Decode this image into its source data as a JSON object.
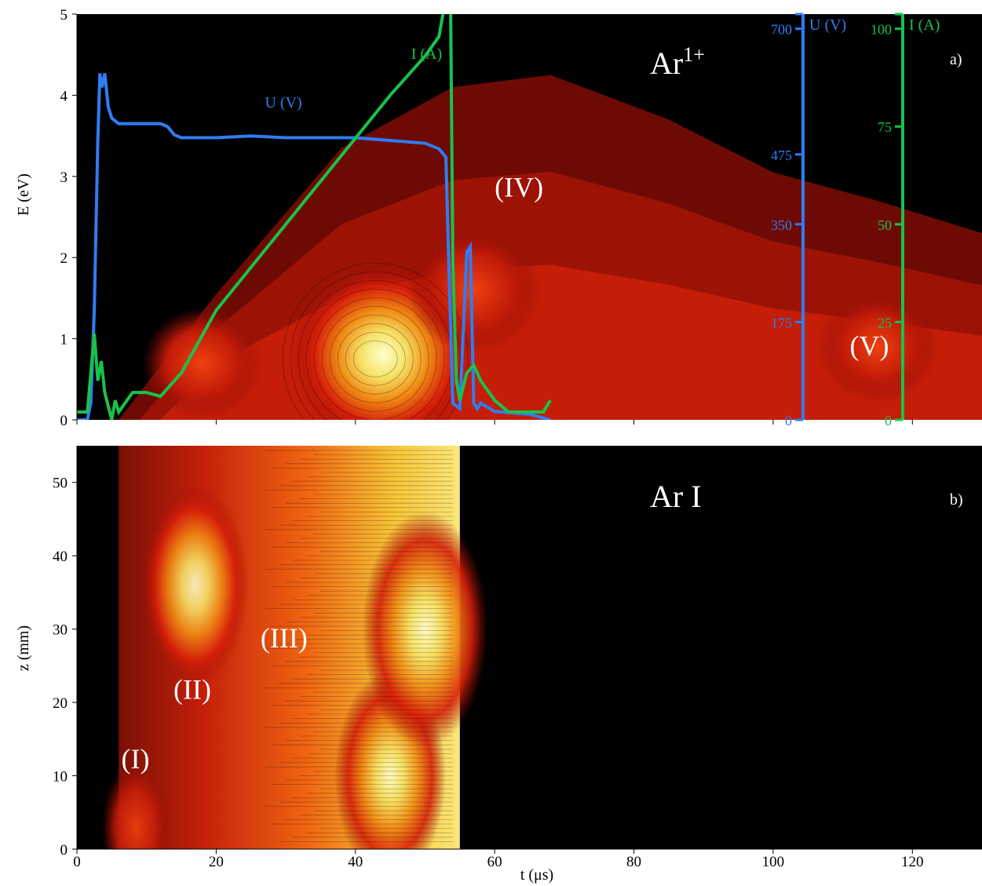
{
  "colors": {
    "voltage": "#2f7df2",
    "current": "#19c24a",
    "background": "#000000"
  },
  "chart_data": [
    {
      "type": "heatmap",
      "panel_label": "a)",
      "species_label": "Ar1+",
      "species_base": "Ar",
      "species_sup": "1+",
      "ylabel": "E (eV)",
      "xlim": [
        0,
        130
      ],
      "ylim": [
        0,
        5
      ],
      "y_ticks": [
        "0",
        "1",
        "2",
        "3",
        "4",
        "5"
      ],
      "region_labels": [
        {
          "text": "(IV)",
          "t": 60,
          "E": 2.75
        },
        {
          "text": "(V)",
          "t": 111,
          "E": 0.8
        }
      ],
      "right_axes": [
        {
          "name": "U (V)",
          "ticks": [
            "0",
            "175",
            "350",
            "475",
            "700"
          ],
          "values": [
            0,
            175,
            350,
            475,
            700
          ],
          "range": [
            0,
            700
          ]
        },
        {
          "name": "I (A)",
          "ticks": [
            "0",
            "25",
            "50",
            "75",
            "100"
          ],
          "values": [
            0,
            25,
            50,
            75,
            100
          ],
          "range": [
            0,
            100
          ]
        }
      ],
      "series": [
        {
          "name": "U (V)",
          "label_t": 27,
          "label_E": 3.85,
          "x": [
            0,
            1.5,
            2,
            2.5,
            3,
            3.3,
            3.6,
            4,
            4.5,
            5,
            6,
            8,
            12,
            13,
            14,
            15,
            17,
            20,
            25,
            30,
            35,
            40,
            45,
            50,
            52,
            53,
            53.5,
            54,
            55,
            56,
            56.5,
            57,
            57.5,
            58,
            60,
            65,
            68
          ],
          "values": [
            0,
            0,
            30,
            200,
            500,
            620,
            595,
            620,
            560,
            540,
            530,
            530,
            530,
            525,
            510,
            505,
            505,
            505,
            508,
            505,
            505,
            505,
            500,
            495,
            485,
            470,
            240,
            30,
            20,
            300,
            310,
            30,
            20,
            30,
            15,
            10,
            0
          ]
        },
        {
          "name": "I (A)",
          "label_t": 48,
          "label_E": 4.45,
          "x": [
            0,
            1.5,
            2.5,
            3,
            3.5,
            4,
            5,
            5.5,
            6,
            8,
            10,
            12,
            15,
            20,
            25,
            30,
            35,
            40,
            45,
            50,
            52,
            53,
            53.5,
            54,
            54.5,
            55,
            56,
            57,
            58,
            60,
            62,
            65,
            67,
            68
          ],
          "values": [
            2,
            2,
            22,
            10,
            15,
            7,
            0,
            5,
            2,
            7,
            7,
            6,
            12,
            28,
            39,
            50,
            61,
            72,
            83,
            93,
            98,
            108,
            140,
            40,
            10,
            5,
            12,
            14,
            10,
            5,
            2,
            2,
            2,
            5
          ]
        }
      ],
      "ridges": [
        {
          "t": 20,
          "E": 1.55
        },
        {
          "t": 38,
          "E": 3.35
        },
        {
          "t": 54,
          "E": 4.1
        },
        {
          "t": 68,
          "E": 4.25
        },
        {
          "t": 85,
          "E": 3.7
        },
        {
          "t": 100,
          "E": 3.05
        },
        {
          "t": 115,
          "E": 2.7
        },
        {
          "t": 130,
          "E": 2.3
        }
      ],
      "hot_spots": [
        {
          "t": 18,
          "E": 0.7,
          "level": 0.45
        },
        {
          "t": 44,
          "E": 0.8,
          "level": 0.95
        },
        {
          "t": 57,
          "E": 1.6,
          "level": 0.55
        },
        {
          "t": 115,
          "E": 0.9,
          "level": 0.45
        }
      ]
    },
    {
      "type": "heatmap",
      "panel_label": "b)",
      "species_label": "Ar I",
      "ylabel": "z (mm)",
      "xlabel": "t (μs)",
      "xlim": [
        0,
        130
      ],
      "ylim": [
        0,
        55
      ],
      "x_ticks": [
        "0",
        "20",
        "40",
        "60",
        "80",
        "100",
        "120"
      ],
      "y_ticks": [
        "0",
        "10",
        "20",
        "30",
        "40",
        "50"
      ],
      "region_labels": [
        {
          "text": "(I)",
          "t": 7.5,
          "z": 11
        },
        {
          "text": "(II)",
          "t": 15,
          "z": 20.5
        },
        {
          "text": "(III)",
          "t": 27.5,
          "z": 27.5
        }
      ],
      "emission_window": [
        6,
        55
      ],
      "hot_spots": [
        {
          "t": 8.5,
          "z": 3,
          "level": 0.4
        },
        {
          "t": 17,
          "z": 36,
          "level": 0.8
        },
        {
          "t": 45,
          "z": 10,
          "level": 0.85
        },
        {
          "t": 50,
          "z": 30,
          "level": 1.0
        }
      ]
    }
  ]
}
